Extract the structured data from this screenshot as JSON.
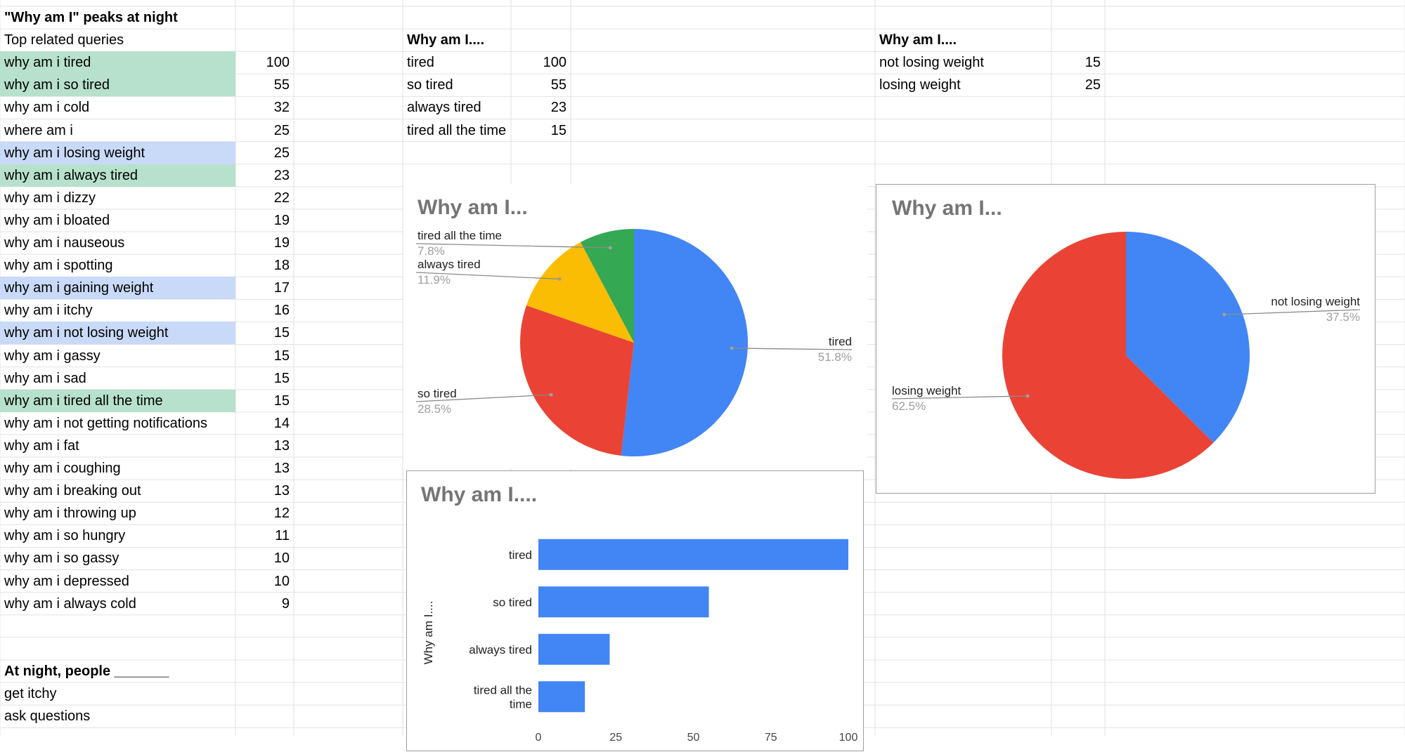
{
  "sheet": {
    "title": "\"Why am I\" peaks at night",
    "queries_header": "Top related queries",
    "queries": [
      {
        "label": "why am i tired",
        "value": "100",
        "hl": "green"
      },
      {
        "label": "why am i so tired",
        "value": "55",
        "hl": "green"
      },
      {
        "label": "why am i cold",
        "value": "32",
        "hl": ""
      },
      {
        "label": "where am i",
        "value": "25",
        "hl": ""
      },
      {
        "label": "why am i losing weight",
        "value": "25",
        "hl": "blue"
      },
      {
        "label": "why am i always tired",
        "value": "23",
        "hl": "green"
      },
      {
        "label": "why am i dizzy",
        "value": "22",
        "hl": ""
      },
      {
        "label": "why am i bloated",
        "value": "19",
        "hl": ""
      },
      {
        "label": "why am i nauseous",
        "value": "19",
        "hl": ""
      },
      {
        "label": "why am i spotting",
        "value": "18",
        "hl": ""
      },
      {
        "label": "why am i gaining weight",
        "value": "17",
        "hl": "blue"
      },
      {
        "label": "why am i itchy",
        "value": "16",
        "hl": ""
      },
      {
        "label": "why am i not losing weight",
        "value": "15",
        "hl": "blue"
      },
      {
        "label": "why am i gassy",
        "value": "15",
        "hl": ""
      },
      {
        "label": "why am i sad",
        "value": "15",
        "hl": ""
      },
      {
        "label": "why am i tired all the time",
        "value": "15",
        "hl": "green"
      },
      {
        "label": "why am i not getting notifications",
        "value": "14",
        "hl": ""
      },
      {
        "label": "why am i fat",
        "value": "13",
        "hl": ""
      },
      {
        "label": "why am i coughing",
        "value": "13",
        "hl": ""
      },
      {
        "label": "why am i breaking out",
        "value": "13",
        "hl": ""
      },
      {
        "label": "why am i throwing up",
        "value": "12",
        "hl": ""
      },
      {
        "label": "why am i so hungry",
        "value": "11",
        "hl": ""
      },
      {
        "label": "why am i so gassy",
        "value": "10",
        "hl": ""
      },
      {
        "label": "why am i depressed",
        "value": "10",
        "hl": ""
      },
      {
        "label": "why am i always cold",
        "value": "9",
        "hl": ""
      }
    ],
    "night_header": "At night, people _______",
    "night_items": [
      "get itchy",
      "ask questions"
    ],
    "table2_header": "Why am I....",
    "table2": [
      {
        "label": "tired",
        "value": "100"
      },
      {
        "label": "so tired",
        "value": "55"
      },
      {
        "label": "always tired",
        "value": "23"
      },
      {
        "label": "tired all the time",
        "value": "15"
      }
    ],
    "table3_header": "Why am I....",
    "table3": [
      {
        "label": "not losing weight",
        "value": "15"
      },
      {
        "label": "losing weight",
        "value": "25"
      }
    ]
  },
  "colors": {
    "blue": "#4285f4",
    "red": "#ea4335",
    "yellow": "#fbbc04",
    "green": "#34a853",
    "hl_green": "#b7e1cd",
    "hl_blue": "#c9daf8",
    "title_gray": "#757575"
  },
  "chart_data": [
    {
      "type": "pie",
      "title": "Why am I...",
      "slices": [
        {
          "label": "tired",
          "value": 100,
          "percent": "51.8%",
          "color": "#4285f4"
        },
        {
          "label": "so tired",
          "value": 55,
          "percent": "28.5%",
          "color": "#ea4335"
        },
        {
          "label": "always tired",
          "value": 23,
          "percent": "11.9%",
          "color": "#fbbc04"
        },
        {
          "label": "tired all the time",
          "value": 15,
          "percent": "7.8%",
          "color": "#34a853"
        }
      ]
    },
    {
      "type": "pie",
      "title": "Why am I...",
      "slices": [
        {
          "label": "not losing weight",
          "value": 15,
          "percent": "37.5%",
          "color": "#4285f4"
        },
        {
          "label": "losing weight",
          "value": 25,
          "percent": "62.5%",
          "color": "#ea4335"
        }
      ]
    },
    {
      "type": "bar",
      "orientation": "horizontal",
      "title": "Why am I....",
      "ylabel": "Why am I....",
      "categories": [
        "tired",
        "so tired",
        "always tired",
        "tired all the time"
      ],
      "values": [
        100,
        55,
        23,
        15
      ],
      "xticks": [
        "0",
        "25",
        "50",
        "75",
        "100"
      ],
      "xlim": [
        0,
        100
      ],
      "color": "#4285f4"
    }
  ]
}
